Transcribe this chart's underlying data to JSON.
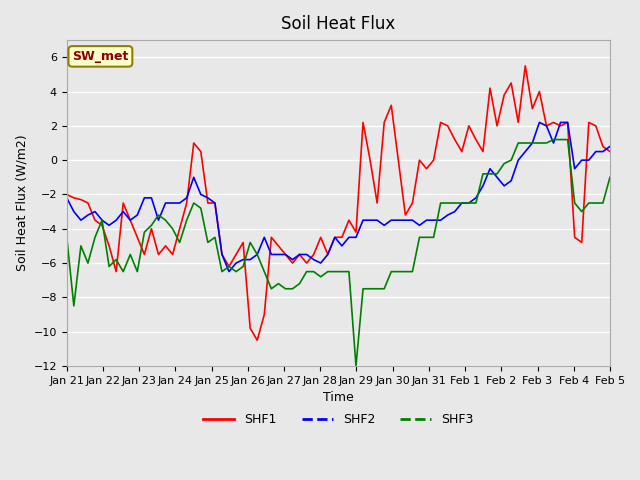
{
  "title": "Soil Heat Flux",
  "xlabel": "Time",
  "ylabel": "Soil Heat Flux (W/m2)",
  "ylim": [
    -12,
    7
  ],
  "yticks": [
    -12,
    -10,
    -8,
    -6,
    -4,
    -2,
    0,
    2,
    4,
    6
  ],
  "bg_color": "#e8e8e8",
  "plot_bg_color": "#e8e8e8",
  "grid_color": "white",
  "legend_label": "SW_met",
  "legend_box_color": "#ffffcc",
  "legend_box_edge": "#8b8000",
  "line_colors": {
    "SHF1": "red",
    "SHF2": "blue",
    "SHF3": "green"
  },
  "xtick_labels": [
    "Jan 21",
    "Jan 22",
    "Jan 23",
    "Jan 24",
    "Jan 25",
    "Jan 26",
    "Jan 27",
    "Jan 28",
    "Jan 29",
    "Jan 30",
    "Jan 31",
    "Feb 1",
    "Feb 2",
    "Feb 3",
    "Feb 4",
    "Feb 5"
  ],
  "SHF1": [
    -2.0,
    -2.2,
    -2.3,
    -2.5,
    -3.5,
    -3.8,
    -5.0,
    -6.5,
    -2.5,
    -3.5,
    -4.5,
    -5.5,
    -4.0,
    -5.5,
    -5.0,
    -5.5,
    -4.0,
    -2.5,
    1.0,
    0.5,
    -2.5,
    -2.5,
    -5.5,
    -6.2,
    -5.5,
    -4.8,
    -9.8,
    -10.5,
    -9.0,
    -4.5,
    -5.0,
    -5.5,
    -6.0,
    -5.5,
    -6.0,
    -5.5,
    -4.5,
    -5.5,
    -4.5,
    -4.5,
    -3.5,
    -4.2,
    2.2,
    0.0,
    -2.5,
    2.2,
    3.2,
    0.0,
    -3.2,
    -2.5,
    0.0,
    -0.5,
    0.0,
    2.2,
    2.0,
    1.2,
    0.5,
    2.0,
    1.2,
    0.5,
    4.2,
    2.0,
    3.8,
    4.5,
    2.2,
    5.5,
    3.0,
    4.0,
    2.0,
    2.2,
    2.0,
    2.2,
    -4.5,
    -4.8,
    2.2,
    2.0,
    0.8,
    0.5
  ],
  "SHF2": [
    -2.2,
    -3.0,
    -3.5,
    -3.2,
    -3.0,
    -3.5,
    -3.8,
    -3.5,
    -3.0,
    -3.5,
    -3.2,
    -2.2,
    -2.2,
    -3.5,
    -2.5,
    -2.5,
    -2.5,
    -2.2,
    -1.0,
    -2.0,
    -2.2,
    -2.5,
    -5.5,
    -6.5,
    -6.0,
    -5.8,
    -5.8,
    -5.5,
    -4.5,
    -5.5,
    -5.5,
    -5.5,
    -5.8,
    -5.5,
    -5.5,
    -5.8,
    -6.0,
    -5.5,
    -4.5,
    -5.0,
    -4.5,
    -4.5,
    -3.5,
    -3.5,
    -3.5,
    -3.8,
    -3.5,
    -3.5,
    -3.5,
    -3.5,
    -3.8,
    -3.5,
    -3.5,
    -3.5,
    -3.2,
    -3.0,
    -2.5,
    -2.5,
    -2.2,
    -1.5,
    -0.5,
    -1.0,
    -1.5,
    -1.2,
    0.0,
    0.5,
    1.0,
    2.2,
    2.0,
    1.0,
    2.2,
    2.2,
    -0.5,
    0.0,
    0.0,
    0.5,
    0.5,
    0.8
  ],
  "SHF3": [
    -4.5,
    -8.5,
    -5.0,
    -6.0,
    -4.5,
    -3.5,
    -6.2,
    -5.8,
    -6.5,
    -5.5,
    -6.5,
    -4.2,
    -3.8,
    -3.2,
    -3.5,
    -4.0,
    -4.8,
    -3.5,
    -2.5,
    -2.8,
    -4.8,
    -4.5,
    -6.5,
    -6.2,
    -6.5,
    -6.2,
    -4.8,
    -5.5,
    -6.5,
    -7.5,
    -7.2,
    -7.5,
    -7.5,
    -7.2,
    -6.5,
    -6.5,
    -6.8,
    -6.5,
    -6.5,
    -6.5,
    -6.5,
    -12.0,
    -7.5,
    -7.5,
    -7.5,
    -7.5,
    -6.5,
    -6.5,
    -6.5,
    -6.5,
    -4.5,
    -4.5,
    -4.5,
    -2.5,
    -2.5,
    -2.5,
    -2.5,
    -2.5,
    -2.5,
    -0.8,
    -0.8,
    -0.8,
    -0.2,
    0.0,
    1.0,
    1.0,
    1.0,
    1.0,
    1.0,
    1.2,
    1.2,
    1.2,
    -2.5,
    -3.0,
    -2.5,
    -2.5,
    -2.5,
    -1.0
  ]
}
